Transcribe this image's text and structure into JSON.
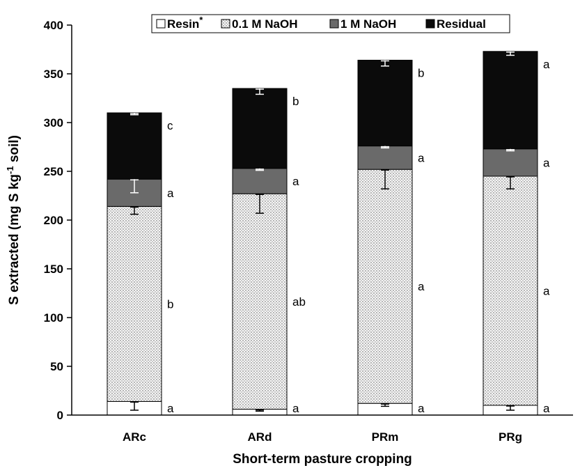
{
  "chart_data": {
    "type": "bar",
    "stacked": true,
    "title": "",
    "xlabel": "Short-term pasture cropping",
    "ylabel": "S extracted (mg S kg-1 soil)",
    "ylabel_parts": {
      "main": "S extracted (mg S kg",
      "sup": "-1",
      "tail": " soil)"
    },
    "ylim": [
      0,
      400
    ],
    "yticks": [
      "0",
      "50",
      "100",
      "150",
      "200",
      "250",
      "300",
      "350",
      "400"
    ],
    "categories": [
      "ARc",
      "ARd",
      "PRm",
      "PRg"
    ],
    "series": [
      {
        "name": "Resin*",
        "legend": {
          "main": "Resin",
          "sup": "*"
        },
        "color": "#ffffff",
        "pattern": "none",
        "values": [
          14,
          6,
          12,
          10
        ],
        "errors": [
          9,
          2,
          3,
          5
        ],
        "letters": [
          "a",
          "a",
          "a",
          "a"
        ]
      },
      {
        "name": "0.1 M NaOH",
        "color": "#f4f4f4",
        "pattern": "dots",
        "values": [
          200,
          221,
          240,
          235
        ],
        "errors": [
          8,
          20,
          20,
          13
        ],
        "letters": [
          "b",
          "ab",
          "a",
          "a"
        ]
      },
      {
        "name": "1 M NaOH",
        "color": "#6a6a6a",
        "pattern": "none",
        "values": [
          28,
          26,
          24,
          28
        ],
        "errors": [
          14,
          2,
          2,
          2
        ],
        "letters": [
          "a",
          "a",
          "a",
          "a"
        ]
      },
      {
        "name": "Residual",
        "color": "#0b0b0b",
        "pattern": "none",
        "values": [
          68,
          82,
          88,
          100
        ],
        "errors": [
          2,
          6,
          6,
          4
        ],
        "letters": [
          "c",
          "b",
          "b",
          "a"
        ]
      }
    ],
    "legend_position": "top",
    "grid": false
  }
}
